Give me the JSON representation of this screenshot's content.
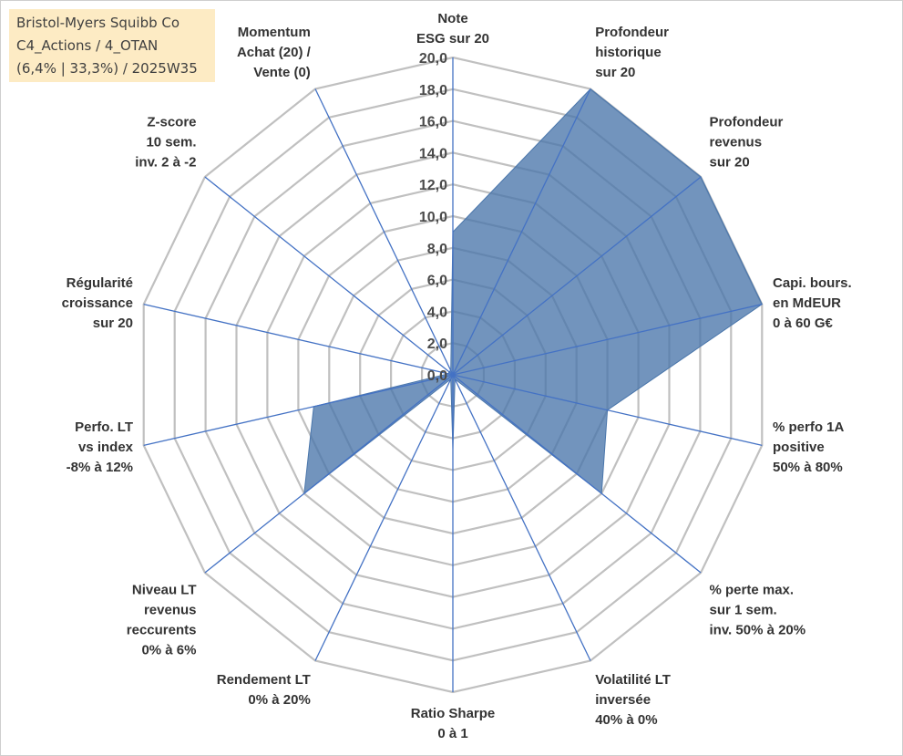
{
  "title_box": {
    "line1": "Bristol-Myers Squibb Co",
    "line2": "C4_Actions / 4_OTAN",
    "line3": "(6,4% | 33,3%) / 2025W35"
  },
  "colors": {
    "fill": "#4a76ab",
    "grid": "#c0c0c0",
    "spoke": "#4472c4",
    "title_bg": "#fdebc4"
  },
  "chart_data": {
    "type": "radar",
    "rmax": 20,
    "ticks": [
      "0,0",
      "2,0",
      "4,0",
      "6,0",
      "8,0",
      "10,0",
      "12,0",
      "14,0",
      "16,0",
      "18,0",
      "20,0"
    ],
    "grid": true,
    "axes": [
      {
        "label": [
          "Note",
          "ESG sur 20"
        ],
        "value": 9
      },
      {
        "label": [
          "Profondeur",
          "historique",
          "sur 20"
        ],
        "value": 20
      },
      {
        "label": [
          "Profondeur",
          "revenus",
          "sur 20"
        ],
        "value": 20
      },
      {
        "label": [
          "Capi. bours.",
          "en MdEUR",
          "0 à 60 G€"
        ],
        "value": 20
      },
      {
        "label": [
          "% perfo 1A",
          "positive",
          "50% à 80%"
        ],
        "value": 10
      },
      {
        "label": [
          "% perte max.",
          "sur 1 sem.",
          "inv. 50% à 20%"
        ],
        "value": 12
      },
      {
        "label": [
          "Volatilité LT",
          "inversée",
          "40% à 0%"
        ],
        "value": 0.3
      },
      {
        "label": [
          "Ratio Sharpe",
          "0 à 1"
        ],
        "value": 4.7
      },
      {
        "label": [
          "Rendement LT",
          "0% à 20%"
        ],
        "value": 0.3
      },
      {
        "label": [
          "Niveau LT",
          "revenus",
          "reccurents",
          "0% à 6%"
        ],
        "value": 12
      },
      {
        "label": [
          "Perfo. LT",
          "vs index",
          "-8% à 12%"
        ],
        "value": 9
      },
      {
        "label": [
          "Régularité",
          "croissance",
          "sur 20"
        ],
        "value": 0.3
      },
      {
        "label": [
          "Z-score",
          "10 sem.",
          "inv. 2 à -2"
        ],
        "value": 0.3
      },
      {
        "label": [
          "Momentum",
          "Achat (20) /",
          "Vente (0)"
        ],
        "value": 0.3
      }
    ]
  }
}
